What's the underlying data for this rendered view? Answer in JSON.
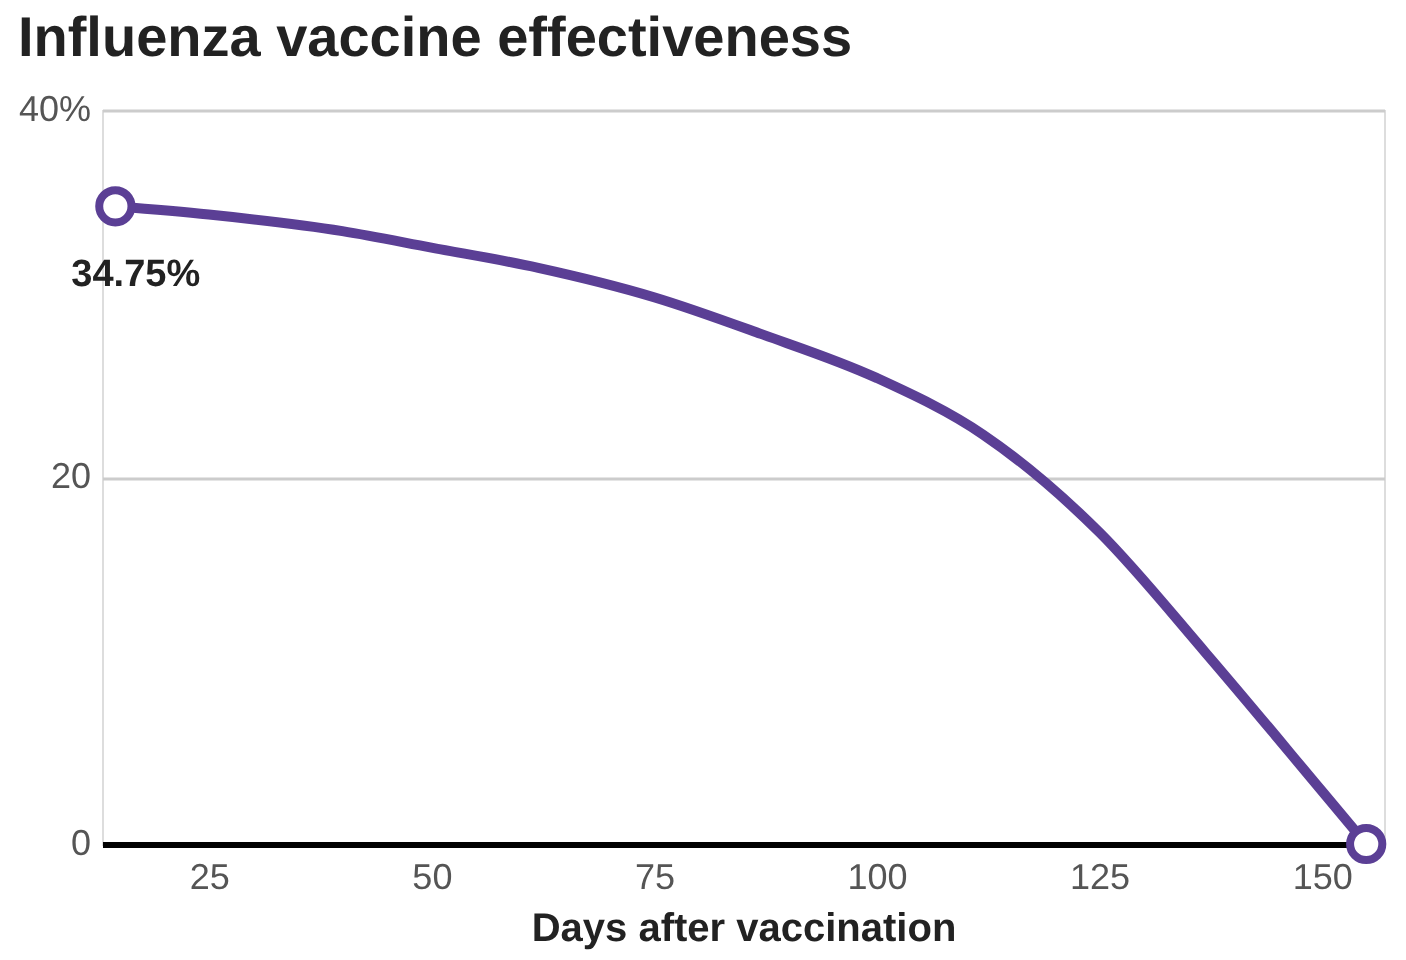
{
  "chart_data": {
    "type": "line",
    "title": "Influenza vaccine effectiveness",
    "xlabel": "Days after vaccination",
    "series": [
      {
        "color": "#5b3f95",
        "marker": "none",
        "x": [
          14.5,
          25,
          40,
          50,
          62,
          75,
          87,
          100,
          112,
          125,
          137,
          150,
          155
        ],
        "values": [
          34.75,
          34.3,
          33.4,
          32.5,
          31.4,
          29.8,
          27.8,
          25.4,
          22.3,
          17,
          10.4,
          2.9,
          0
        ]
      },
      {
        "type": "scatter",
        "color": "#5b3f95",
        "marker": "circle",
        "x": [
          14.5,
          155
        ],
        "values": [
          34.75,
          0
        ]
      }
    ],
    "annotations": [
      {
        "text": "34.75%",
        "x": 14.5,
        "y": 34.75
      }
    ],
    "xlim": [
      13,
      157
    ],
    "xticks": [
      25,
      50,
      75,
      100,
      125,
      150
    ],
    "ylim": [
      0,
      40
    ],
    "yticks": [
      {
        "value": 40,
        "label": "40%"
      },
      20,
      0
    ],
    "grid": "y"
  }
}
